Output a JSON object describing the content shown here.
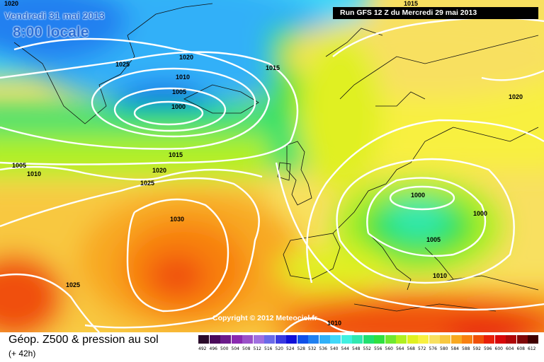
{
  "header": {
    "date_label": "Vendredi 31 mai 2013",
    "time_label": "8:00 locale",
    "run_label": "Run GFS 12 Z du Mercredi 29 mai 2013"
  },
  "copyright": "Copyright © 2012 Meteociel.fr",
  "footer": {
    "title": "Géop. Z500 & pression au sol",
    "subtitle": "(+ 42h)"
  },
  "isobar_labels": [
    "1020",
    "1025",
    "1020",
    "1010",
    "1005",
    "1000",
    "1015",
    "1015",
    "1020",
    "1005",
    "1010",
    "1015",
    "1020",
    "1025",
    "1030",
    "1025",
    "1000",
    "1000",
    "1005",
    "1010",
    "1010"
  ],
  "scale": [
    {
      "value": "492",
      "color": "#2a0a2a"
    },
    {
      "value": "496",
      "color": "#4a0a5a"
    },
    {
      "value": "500",
      "color": "#6a1a8a"
    },
    {
      "value": "504",
      "color": "#8a2ab0"
    },
    {
      "value": "508",
      "color": "#9a50c8"
    },
    {
      "value": "512",
      "color": "#a070e0"
    },
    {
      "value": "516",
      "color": "#6a6ae8"
    },
    {
      "value": "520",
      "color": "#3a3ae0"
    },
    {
      "value": "524",
      "color": "#1010d8"
    },
    {
      "value": "528",
      "color": "#1050e8"
    },
    {
      "value": "532",
      "color": "#2080f0"
    },
    {
      "value": "536",
      "color": "#30b0f8"
    },
    {
      "value": "540",
      "color": "#40d8f8"
    },
    {
      "value": "544",
      "color": "#40f0e0"
    },
    {
      "value": "548",
      "color": "#30e8b0"
    },
    {
      "value": "552",
      "color": "#20e070"
    },
    {
      "value": "556",
      "color": "#30e040"
    },
    {
      "value": "560",
      "color": "#70e830"
    },
    {
      "value": "564",
      "color": "#b0f020"
    },
    {
      "value": "568",
      "color": "#e0f020"
    },
    {
      "value": "572",
      "color": "#f8f040"
    },
    {
      "value": "576",
      "color": "#f8e060"
    },
    {
      "value": "580",
      "color": "#f8c840"
    },
    {
      "value": "584",
      "color": "#f8a820"
    },
    {
      "value": "588",
      "color": "#f88010"
    },
    {
      "value": "592",
      "color": "#f05008"
    },
    {
      "value": "596",
      "color": "#e82008"
    },
    {
      "value": "600",
      "color": "#d80808"
    },
    {
      "value": "604",
      "color": "#b00808"
    },
    {
      "value": "608",
      "color": "#800808"
    },
    {
      "value": "612",
      "color": "#400000"
    }
  ],
  "colors": {
    "isobar": "#ffffff",
    "coast": "#111111"
  }
}
